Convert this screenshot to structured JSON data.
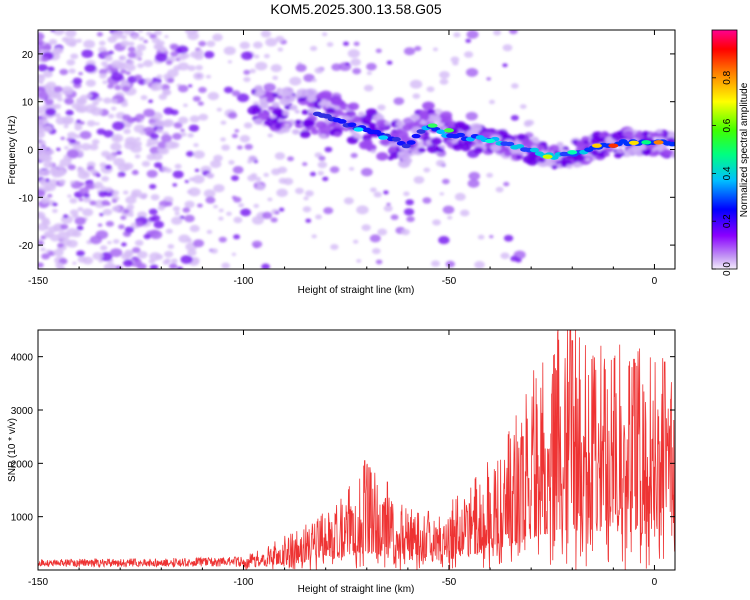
{
  "title": "KOM5.2025.300.13.58.G05",
  "chart_data": [
    {
      "type": "heatmap",
      "name": "spectrogram",
      "xlabel": "Height of straight line (km)",
      "ylabel": "Frequency (Hz)",
      "xlim": [
        -150,
        5
      ],
      "ylim": [
        -25,
        25
      ],
      "xticks": [
        -150,
        -100,
        -50,
        0
      ],
      "yticks": [
        -20,
        -10,
        0,
        10,
        20
      ],
      "colorbar": {
        "label": "Normalized spectral amplitude",
        "range": [
          0,
          1
        ],
        "ticks": [
          "0.0",
          "0.2",
          "0.4",
          "0.6",
          "0.8"
        ],
        "colormap": [
          "#e8d8f8",
          "#8000ff",
          "#0000ff",
          "#00c0ff",
          "#00ff00",
          "#ffff00",
          "#ff8000",
          "#ff0000",
          "#ff00a0"
        ]
      },
      "ridge": {
        "description_points": [
          {
            "x": -95,
            "y": 9
          },
          {
            "x": -80,
            "y": 7
          },
          {
            "x": -70,
            "y": 4
          },
          {
            "x": -60,
            "y": 1
          },
          {
            "x": -55,
            "y": 5
          },
          {
            "x": -50,
            "y": 3
          },
          {
            "x": -40,
            "y": 2
          },
          {
            "x": -30,
            "y": 0
          },
          {
            "x": -25,
            "y": -1.5
          },
          {
            "x": -20,
            "y": -1
          },
          {
            "x": -12,
            "y": 1
          },
          {
            "x": -5,
            "y": 1.5
          },
          {
            "x": 0,
            "y": 1.5
          },
          {
            "x": 5,
            "y": 1
          }
        ]
      }
    },
    {
      "type": "line",
      "name": "snr",
      "xlabel": "Height of straight line (km)",
      "ylabel": "SNR (10 * v/v)",
      "xlim": [
        -150,
        5
      ],
      "ylim": [
        0,
        4500
      ],
      "xticks": [
        -150,
        -100,
        -50,
        0
      ],
      "yticks": [
        1000,
        2000,
        3000,
        4000
      ],
      "color": "#ee3333",
      "envelope": [
        {
          "x": -150,
          "y": 100
        },
        {
          "x": -120,
          "y": 120
        },
        {
          "x": -100,
          "y": 150
        },
        {
          "x": -90,
          "y": 400
        },
        {
          "x": -80,
          "y": 700
        },
        {
          "x": -70,
          "y": 1300
        },
        {
          "x": -65,
          "y": 900
        },
        {
          "x": -55,
          "y": 600
        },
        {
          "x": -45,
          "y": 1000
        },
        {
          "x": -35,
          "y": 1700
        },
        {
          "x": -30,
          "y": 2300
        },
        {
          "x": -25,
          "y": 2800
        },
        {
          "x": -20,
          "y": 3000
        },
        {
          "x": -15,
          "y": 2700
        },
        {
          "x": -10,
          "y": 2600
        },
        {
          "x": -5,
          "y": 2800
        },
        {
          "x": 0,
          "y": 2500
        },
        {
          "x": 5,
          "y": 2500
        }
      ],
      "peaks": [
        {
          "x": -70.5,
          "y": 2050
        },
        {
          "x": -65,
          "y": 1650
        },
        {
          "x": -55,
          "y": 1100
        },
        {
          "x": -32,
          "y": 2500
        },
        {
          "x": -25,
          "y": 3300
        },
        {
          "x": -20.5,
          "y": 4500
        },
        {
          "x": -20,
          "y": 4300
        },
        {
          "x": -5,
          "y": 3950
        },
        {
          "x": 2.5,
          "y": 3900
        },
        {
          "x": 4,
          "y": 3200
        }
      ]
    }
  ]
}
